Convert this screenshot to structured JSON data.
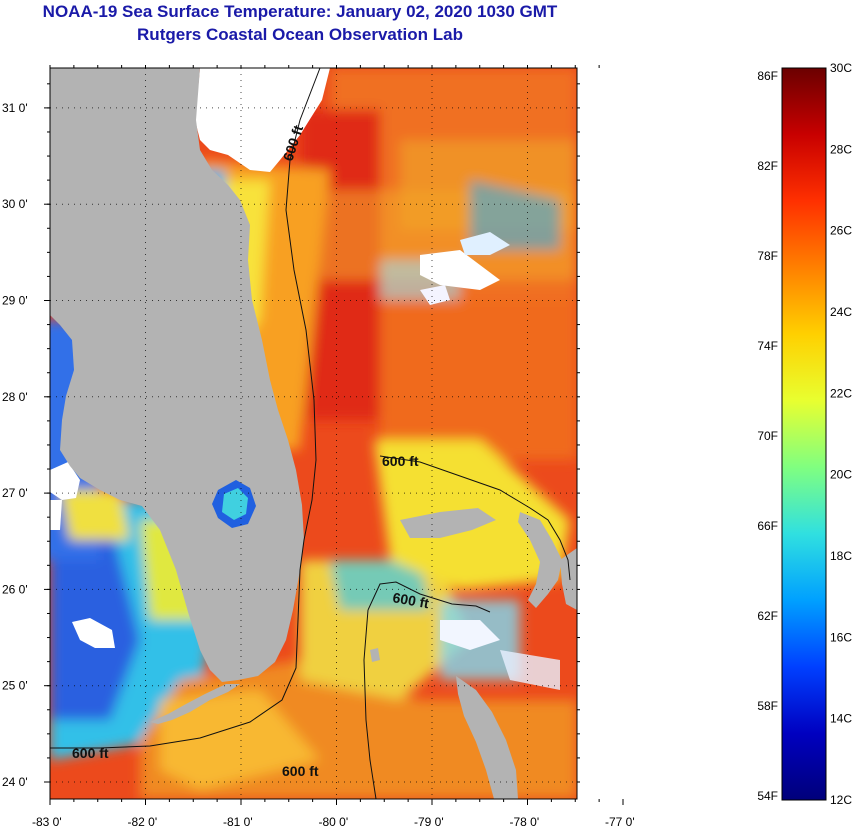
{
  "title": {
    "line1": "NOAA-19 Sea Surface Temperature:  January 02, 2020 1030 GMT",
    "line2": "Rutgers Coastal Ocean Observation Lab"
  },
  "map": {
    "lat_ticks": [
      {
        "value": 31,
        "label": "31 0'"
      },
      {
        "value": 30,
        "label": "30 0'"
      },
      {
        "value": 29,
        "label": "29 0'"
      },
      {
        "value": 28,
        "label": "28 0'"
      },
      {
        "value": 27,
        "label": "27 0'"
      },
      {
        "value": 26,
        "label": "26 0'"
      },
      {
        "value": 25,
        "label": "25 0'"
      },
      {
        "value": 24,
        "label": "24 0'"
      }
    ],
    "lon_ticks": [
      {
        "value": -83,
        "label": "-83 0'"
      },
      {
        "value": -82,
        "label": "-82 0'"
      },
      {
        "value": -81,
        "label": "-81 0'"
      },
      {
        "value": -80,
        "label": "-80 0'"
      },
      {
        "value": -79,
        "label": "-79 0'"
      },
      {
        "value": -78,
        "label": "-78 0'"
      },
      {
        "value": -77,
        "label": "-77 0'"
      }
    ],
    "contour_labels": [
      "600 ft",
      "600 ft",
      "600 ft",
      "600 ft",
      "600 ft"
    ],
    "colors": {
      "land": "#b3b3b3",
      "cloud": "#ffffff",
      "warm_red": "#e8301c",
      "orange": "#f57a1e",
      "yellow": "#f0e030",
      "cyan": "#30c8e8",
      "blue": "#2050e0"
    }
  },
  "colorbar": {
    "fahrenheit_labels": [
      "86F",
      "82F",
      "78F",
      "74F",
      "70F",
      "66F",
      "62F",
      "58F",
      "54F"
    ],
    "celsius_labels": [
      "30C",
      "28C",
      "26C",
      "24C",
      "22C",
      "20C",
      "18C",
      "16C",
      "14C",
      "12C"
    ],
    "gradient_stops": [
      "#6b0000",
      "#c80000",
      "#ff3000",
      "#ff8000",
      "#ffd000",
      "#e8ff30",
      "#80ff80",
      "#30e0e0",
      "#00a0ff",
      "#0040ff",
      "#0000c0",
      "#00007a"
    ]
  }
}
